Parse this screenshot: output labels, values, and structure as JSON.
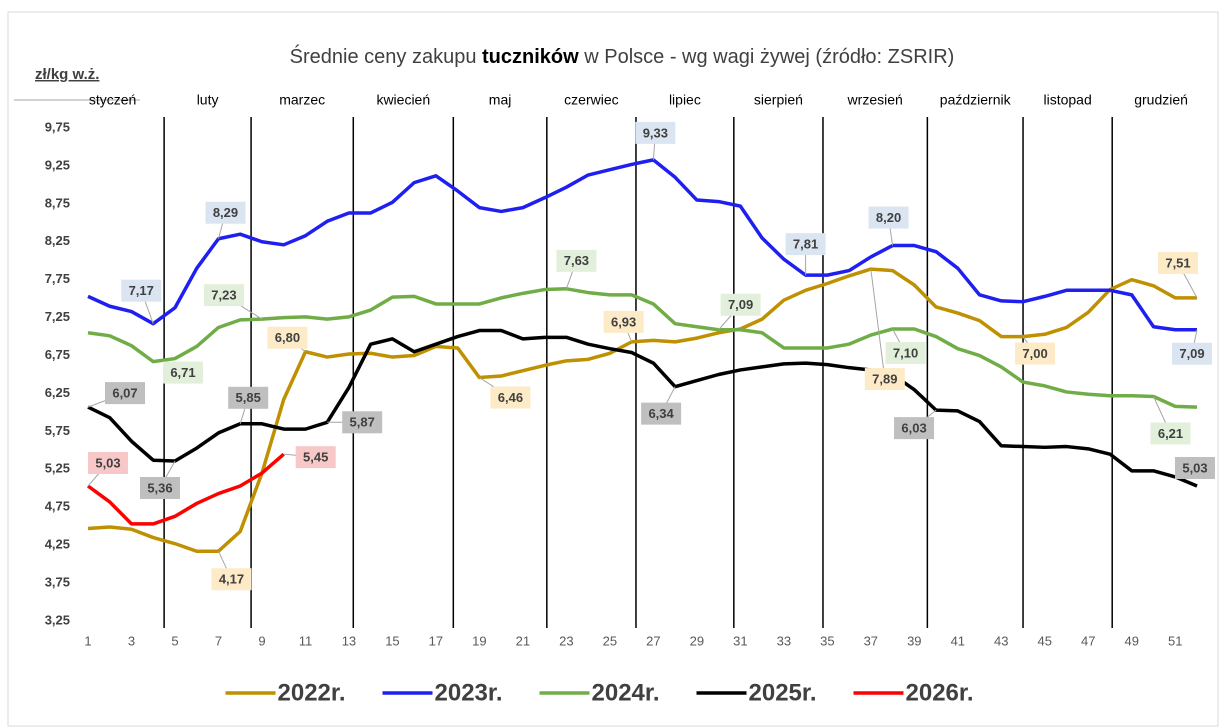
{
  "chart_data": {
    "type": "line",
    "title": {
      "pre": "Średnie ceny zakupu ",
      "bold": "tuczników",
      "post": " w Polsce - wg wagi żywej (źródło: ZSRIR)"
    },
    "y_label": "zł/kg w.ż.",
    "months": [
      "styczeń",
      "luty",
      "marzec",
      "kwiecień",
      "maj",
      "czerwiec",
      "lipiec",
      "sierpień",
      "wrzesień",
      "październik",
      "listopad",
      "grudzień"
    ],
    "month_boundaries": [
      4.5,
      8.5,
      13.2,
      17.8,
      22.1,
      26.2,
      30.7,
      34.8,
      39.6,
      44,
      48.1
    ],
    "x": [
      1,
      2,
      3,
      4,
      5,
      6,
      7,
      8,
      9,
      10,
      11,
      12,
      13,
      14,
      15,
      16,
      17,
      18,
      19,
      20,
      21,
      22,
      23,
      24,
      25,
      26,
      27,
      28,
      29,
      30,
      31,
      32,
      33,
      34,
      35,
      36,
      37,
      38,
      39,
      40,
      41,
      42,
      43,
      44,
      45,
      46,
      47,
      48,
      49,
      50,
      51,
      52
    ],
    "xlim": [
      1,
      52
    ],
    "xticks": [
      1,
      3,
      5,
      7,
      9,
      11,
      13,
      15,
      17,
      19,
      21,
      23,
      25,
      27,
      29,
      31,
      33,
      35,
      37,
      39,
      41,
      43,
      45,
      47,
      49,
      51
    ],
    "ylim": [
      3.25,
      9.75
    ],
    "yticks": [
      {
        "value": 3.25,
        "label": "3,25"
      },
      {
        "value": 3.75,
        "label": "3,75"
      },
      {
        "value": 4.25,
        "label": "4,25"
      },
      {
        "value": 4.75,
        "label": "4,75"
      },
      {
        "value": 5.25,
        "label": "5,25"
      },
      {
        "value": 5.75,
        "label": "5,75"
      },
      {
        "value": 6.25,
        "label": "6,25"
      },
      {
        "value": 6.75,
        "label": "6,75"
      },
      {
        "value": 7.25,
        "label": "7,25"
      },
      {
        "value": 7.75,
        "label": "7,75"
      },
      {
        "value": 8.25,
        "label": "8,25"
      },
      {
        "value": 8.75,
        "label": "8,75"
      },
      {
        "value": 9.25,
        "label": "9,25"
      },
      {
        "value": 9.75,
        "label": "9,75"
      }
    ],
    "grid": false,
    "legend": "bottom",
    "series": [
      {
        "name": "2022r.",
        "color": "#bf9000",
        "label_color": "#fdebc8",
        "values": [
          4.47,
          4.49,
          4.46,
          4.35,
          4.27,
          4.17,
          4.17,
          4.43,
          5.2,
          6.17,
          6.8,
          6.73,
          6.77,
          6.78,
          6.73,
          6.75,
          6.87,
          6.85,
          6.46,
          6.48,
          6.55,
          6.62,
          6.68,
          6.7,
          6.78,
          6.93,
          6.95,
          6.93,
          6.98,
          7.05,
          7.1,
          7.23,
          7.48,
          7.61,
          7.7,
          7.8,
          7.89,
          7.87,
          7.68,
          7.39,
          7.31,
          7.21,
          7.0,
          7.0,
          7.03,
          7.12,
          7.32,
          7.62,
          7.75,
          7.67,
          7.51,
          7.51
        ],
        "value_labels": [
          null,
          null,
          null,
          null,
          null,
          null,
          "4,17",
          null,
          null,
          null,
          "6,80",
          null,
          null,
          null,
          null,
          null,
          null,
          null,
          "6,46",
          null,
          null,
          null,
          null,
          null,
          null,
          "6,93",
          null,
          null,
          null,
          null,
          null,
          null,
          null,
          null,
          null,
          null,
          "7,89",
          null,
          null,
          null,
          null,
          null,
          null,
          "7,00",
          null,
          null,
          null,
          null,
          null,
          null,
          null,
          "7,51"
        ]
      },
      {
        "name": "2023r.",
        "color": "#1f1ff0",
        "label_color": "#dbe5f1",
        "values": [
          7.53,
          7.4,
          7.33,
          7.17,
          7.38,
          7.9,
          8.29,
          8.35,
          8.25,
          8.21,
          8.33,
          8.52,
          8.63,
          8.63,
          8.77,
          9.03,
          9.12,
          8.92,
          8.7,
          8.65,
          8.7,
          8.83,
          8.97,
          9.13,
          9.2,
          9.27,
          9.33,
          9.1,
          8.8,
          8.78,
          8.72,
          8.3,
          8.02,
          7.81,
          7.81,
          7.87,
          8.05,
          8.2,
          8.2,
          8.12,
          7.9,
          7.55,
          7.47,
          7.46,
          7.53,
          7.61,
          7.61,
          7.61,
          7.55,
          7.13,
          7.09,
          7.09
        ],
        "value_labels": [
          null,
          null,
          null,
          "7,17",
          null,
          null,
          "8,29",
          null,
          null,
          null,
          null,
          null,
          null,
          null,
          null,
          null,
          null,
          null,
          null,
          null,
          null,
          null,
          null,
          null,
          null,
          null,
          "9,33",
          null,
          null,
          null,
          null,
          null,
          null,
          "7,81",
          null,
          null,
          null,
          "8,20",
          null,
          null,
          null,
          null,
          null,
          null,
          null,
          null,
          null,
          null,
          null,
          null,
          null,
          "7,09"
        ]
      },
      {
        "name": "2024r.",
        "color": "#70ad47",
        "label_color": "#e2efda",
        "values": [
          7.05,
          7.01,
          6.88,
          6.67,
          6.71,
          6.87,
          7.12,
          7.22,
          7.23,
          7.25,
          7.26,
          7.23,
          7.26,
          7.35,
          7.52,
          7.53,
          7.43,
          7.43,
          7.43,
          7.51,
          7.57,
          7.62,
          7.63,
          7.58,
          7.55,
          7.55,
          7.43,
          7.17,
          7.13,
          7.09,
          7.09,
          7.05,
          6.85,
          6.85,
          6.85,
          6.9,
          7.02,
          7.1,
          7.1,
          7.0,
          6.84,
          6.75,
          6.6,
          6.4,
          6.35,
          6.27,
          6.24,
          6.22,
          6.22,
          6.21,
          6.08,
          6.07
        ],
        "value_labels": [
          null,
          null,
          null,
          null,
          "6,71",
          null,
          null,
          null,
          "7,23",
          null,
          null,
          null,
          null,
          null,
          null,
          null,
          null,
          null,
          null,
          null,
          null,
          null,
          "7,63",
          null,
          null,
          null,
          null,
          null,
          null,
          "7,09",
          null,
          null,
          null,
          null,
          null,
          null,
          null,
          "7,10",
          null,
          null,
          null,
          null,
          null,
          null,
          null,
          null,
          null,
          null,
          null,
          "6,21",
          null,
          null
        ]
      },
      {
        "name": "2025r.",
        "color": "#000000",
        "label_color": "#bfbfbf",
        "values": [
          6.07,
          5.93,
          5.62,
          5.37,
          5.36,
          5.53,
          5.73,
          5.85,
          5.85,
          5.78,
          5.78,
          5.87,
          6.33,
          6.9,
          6.97,
          6.8,
          6.9,
          7.0,
          7.08,
          7.08,
          6.97,
          6.99,
          6.99,
          6.9,
          6.84,
          6.79,
          6.65,
          6.34,
          6.42,
          6.5,
          6.56,
          6.6,
          6.64,
          6.65,
          6.63,
          6.59,
          6.56,
          6.5,
          6.3,
          6.03,
          6.02,
          5.88,
          5.56,
          5.55,
          5.54,
          5.55,
          5.52,
          5.45,
          5.23,
          5.23,
          5.15,
          5.03
        ],
        "value_labels": [
          "6,07",
          null,
          null,
          null,
          "5,36",
          null,
          null,
          "5,85",
          null,
          null,
          null,
          "5,87",
          null,
          null,
          null,
          null,
          null,
          null,
          null,
          null,
          null,
          null,
          null,
          null,
          null,
          null,
          null,
          "6,34",
          null,
          null,
          null,
          null,
          null,
          null,
          null,
          null,
          null,
          null,
          null,
          "6,03",
          null,
          null,
          null,
          null,
          null,
          null,
          null,
          null,
          null,
          null,
          null,
          "5,03"
        ]
      },
      {
        "name": "2026r.",
        "color": "#ff0000",
        "label_color": "#f8c8c8",
        "values": [
          5.03,
          4.82,
          4.53,
          4.53,
          4.63,
          4.8,
          4.93,
          5.03,
          5.2,
          5.45,
          null,
          null,
          null,
          null,
          null,
          null,
          null,
          null,
          null,
          null,
          null,
          null,
          null,
          null,
          null,
          null,
          null,
          null,
          null,
          null,
          null,
          null,
          null,
          null,
          null,
          null,
          null,
          null,
          null,
          null,
          null,
          null,
          null,
          null,
          null,
          null,
          null,
          null,
          null,
          null,
          null,
          null
        ],
        "value_labels": [
          "5,03",
          null,
          null,
          null,
          null,
          null,
          null,
          null,
          null,
          "5,45",
          null,
          null,
          null,
          null,
          null,
          null,
          null,
          null,
          null,
          null,
          null,
          null,
          null,
          null,
          null,
          null,
          null,
          null,
          null,
          null,
          null,
          null,
          null,
          null,
          null,
          null,
          null,
          null,
          null,
          null,
          null,
          null,
          null,
          null,
          null,
          null,
          null,
          null,
          null,
          null,
          null,
          null
        ]
      }
    ]
  }
}
